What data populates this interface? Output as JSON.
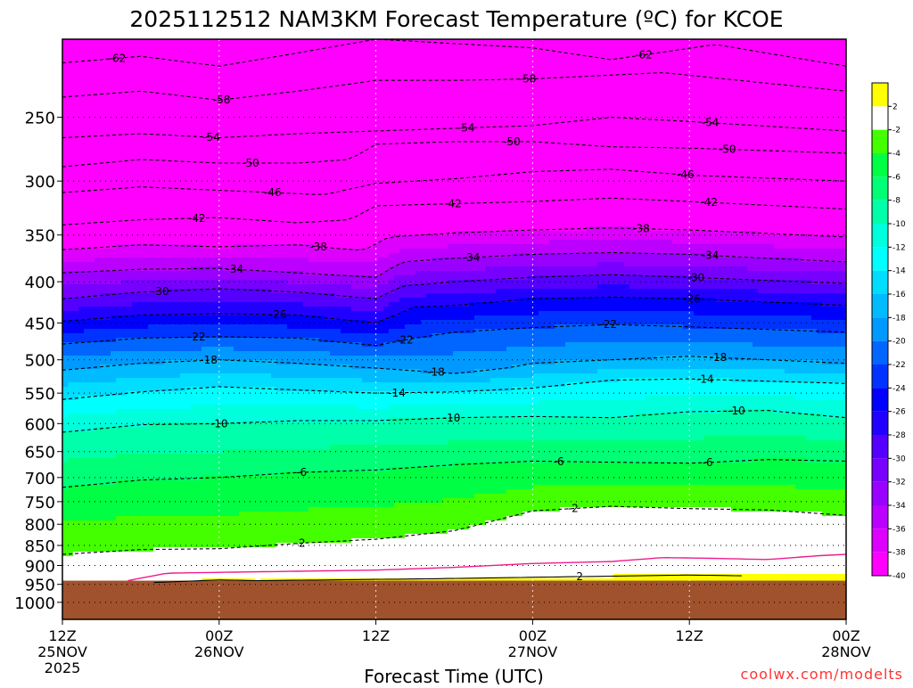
{
  "chart_data": {
    "type": "heatmap",
    "title": "2025112512 NAM3KM Forecast Temperature (ºC) for KCOE",
    "xlabel": "Forecast Time (UTC)",
    "ylabel": "",
    "credit": "coolwx.com/modelts",
    "x_ticks": [
      {
        "hour": 0,
        "line1": "12Z",
        "line2": "25NOV",
        "line3": "2025"
      },
      {
        "hour": 12,
        "line1": "00Z",
        "line2": "26NOV",
        "line3": ""
      },
      {
        "hour": 24,
        "line1": "12Z",
        "line2": "",
        "line3": ""
      },
      {
        "hour": 36,
        "line1": "00Z",
        "line2": "27NOV",
        "line3": ""
      },
      {
        "hour": 48,
        "line1": "12Z",
        "line2": "",
        "line3": ""
      },
      {
        "hour": 60,
        "line1": "00Z",
        "line2": "28NOV",
        "line3": ""
      }
    ],
    "xlim": [
      0,
      60
    ],
    "y_ticks": [
      250,
      300,
      350,
      400,
      450,
      500,
      550,
      600,
      650,
      700,
      750,
      800,
      850,
      900,
      950,
      1000
    ],
    "ylim": [
      1050,
      200
    ],
    "yscale": "log-pressure",
    "surface_pressure": 940,
    "surface_color": "#a0522d",
    "colorbar": {
      "levels": [
        "2",
        "-2",
        "-4",
        "-6",
        "-8",
        "-10",
        "-12",
        "-14",
        "-16",
        "-18",
        "-20",
        "-22",
        "-24",
        "-26",
        "-28",
        "-30",
        "-32",
        "-34",
        "-36",
        "-38",
        "-40"
      ],
      "colors": [
        "#ffff00",
        "#ffffff",
        "#44ff00",
        "#00ff44",
        "#00ff77",
        "#00ffaa",
        "#00ffdd",
        "#00ffff",
        "#00ddff",
        "#00bbff",
        "#0099ff",
        "#0066ff",
        "#0033ff",
        "#0000ff",
        "#2200ff",
        "#5500ff",
        "#7700ff",
        "#9900ff",
        "#bb00ff",
        "#dd00ff",
        "#ff00ff"
      ]
    },
    "contours": [
      {
        "label": "-62",
        "pts": [
          [
            0,
            214
          ],
          [
            6,
            210
          ],
          [
            12,
            216
          ],
          [
            18,
            208
          ],
          [
            24,
            200
          ],
          [
            36,
            205
          ],
          [
            42,
            212
          ],
          [
            50,
            203
          ],
          [
            60,
            216
          ]
        ],
        "labels_at": [
          [
            4.2,
            -62
          ],
          [
            44.5,
            -62
          ]
        ]
      },
      {
        "label": "-58",
        "pts": [
          [
            0,
            236
          ],
          [
            6,
            232
          ],
          [
            12,
            238
          ],
          [
            18,
            232
          ],
          [
            24,
            225
          ],
          [
            30,
            225
          ],
          [
            36,
            224
          ],
          [
            46,
            220
          ],
          [
            60,
            232
          ]
        ],
        "labels_at": [
          [
            12.2,
            -58
          ],
          [
            35.6,
            -58
          ]
        ]
      },
      {
        "label": "-54",
        "pts": [
          [
            0,
            265
          ],
          [
            6,
            262
          ],
          [
            12,
            265
          ],
          [
            18,
            262
          ],
          [
            24,
            260
          ],
          [
            30,
            258
          ],
          [
            36,
            256
          ],
          [
            42,
            250
          ],
          [
            48,
            253
          ],
          [
            60,
            260
          ]
        ],
        "labels_at": [
          [
            11.4,
            -54
          ],
          [
            30.9,
            -54
          ],
          [
            49.6,
            -54
          ]
        ]
      },
      {
        "label": "-50",
        "pts": [
          [
            0,
            288
          ],
          [
            6,
            282
          ],
          [
            12,
            285
          ],
          [
            18,
            285
          ],
          [
            22,
            282
          ],
          [
            24,
            270
          ],
          [
            30,
            268
          ],
          [
            36,
            268
          ],
          [
            42,
            272
          ],
          [
            48,
            273
          ],
          [
            60,
            277
          ]
        ],
        "labels_at": [
          [
            14.4,
            -50
          ],
          [
            34.4,
            -50
          ],
          [
            50.9,
            -50
          ]
        ]
      },
      {
        "label": "-46",
        "pts": [
          [
            0,
            310
          ],
          [
            6,
            305
          ],
          [
            12,
            308
          ],
          [
            16,
            310
          ],
          [
            20,
            312
          ],
          [
            24,
            302
          ],
          [
            30,
            298
          ],
          [
            36,
            292
          ],
          [
            42,
            290
          ],
          [
            48,
            295
          ],
          [
            60,
            300
          ]
        ],
        "labels_at": [
          [
            16.1,
            -46
          ],
          [
            47.7,
            -46
          ]
        ]
      },
      {
        "label": "-42",
        "pts": [
          [
            0,
            340
          ],
          [
            6,
            335
          ],
          [
            12,
            333
          ],
          [
            18,
            338
          ],
          [
            22,
            335
          ],
          [
            24,
            322
          ],
          [
            30,
            320
          ],
          [
            36,
            318
          ],
          [
            42,
            315
          ],
          [
            48,
            318
          ],
          [
            60,
            325
          ]
        ],
        "labels_at": [
          [
            10.3,
            -42
          ],
          [
            29.9,
            -42
          ],
          [
            49.5,
            -42
          ]
        ]
      },
      {
        "label": "-38",
        "pts": [
          [
            0,
            365
          ],
          [
            6,
            360
          ],
          [
            12,
            362
          ],
          [
            18,
            360
          ],
          [
            23,
            366
          ],
          [
            25,
            352
          ],
          [
            30,
            348
          ],
          [
            36,
            345
          ],
          [
            42,
            343
          ],
          [
            48,
            345
          ],
          [
            60,
            352
          ]
        ],
        "labels_at": [
          [
            19.6,
            -38
          ],
          [
            44.3,
            -38
          ]
        ]
      },
      {
        "label": "-34",
        "pts": [
          [
            0,
            390
          ],
          [
            6,
            386
          ],
          [
            12,
            385
          ],
          [
            18,
            390
          ],
          [
            24,
            395
          ],
          [
            26,
            378
          ],
          [
            30,
            374
          ],
          [
            36,
            370
          ],
          [
            42,
            368
          ],
          [
            48,
            370
          ],
          [
            60,
            378
          ]
        ],
        "labels_at": [
          [
            13.2,
            -34
          ],
          [
            31.3,
            -34
          ],
          [
            49.6,
            -34
          ]
        ]
      },
      {
        "label": "-30",
        "pts": [
          [
            0,
            420
          ],
          [
            6,
            412
          ],
          [
            12,
            408
          ],
          [
            18,
            412
          ],
          [
            24,
            420
          ],
          [
            26,
            405
          ],
          [
            30,
            400
          ],
          [
            36,
            395
          ],
          [
            42,
            392
          ],
          [
            48,
            395
          ],
          [
            60,
            402
          ]
        ],
        "labels_at": [
          [
            7.5,
            -30
          ],
          [
            48.5,
            -30
          ]
        ]
      },
      {
        "label": "-26",
        "pts": [
          [
            0,
            448
          ],
          [
            6,
            440
          ],
          [
            12,
            438
          ],
          [
            18,
            440
          ],
          [
            24,
            450
          ],
          [
            27,
            430
          ],
          [
            30,
            428
          ],
          [
            36,
            420
          ],
          [
            42,
            418
          ],
          [
            48,
            420
          ],
          [
            60,
            428
          ]
        ],
        "labels_at": [
          [
            16.5,
            -26
          ],
          [
            48.2,
            -26
          ]
        ]
      },
      {
        "label": "-22",
        "pts": [
          [
            0,
            478
          ],
          [
            6,
            470
          ],
          [
            12,
            468
          ],
          [
            18,
            470
          ],
          [
            24,
            480
          ],
          [
            27,
            470
          ],
          [
            30,
            462
          ],
          [
            36,
            456
          ],
          [
            42,
            452
          ],
          [
            48,
            455
          ],
          [
            60,
            462
          ]
        ],
        "labels_at": [
          [
            10.3,
            -22
          ],
          [
            26.2,
            -22
          ],
          [
            41.8,
            -22
          ]
        ]
      },
      {
        "label": "-18",
        "pts": [
          [
            0,
            515
          ],
          [
            6,
            505
          ],
          [
            12,
            500
          ],
          [
            18,
            505
          ],
          [
            24,
            512
          ],
          [
            30,
            520
          ],
          [
            34,
            512
          ],
          [
            36,
            505
          ],
          [
            42,
            500
          ],
          [
            48,
            495
          ],
          [
            60,
            505
          ]
        ],
        "labels_at": [
          [
            11.2,
            -18
          ],
          [
            28.6,
            -18
          ],
          [
            50.2,
            -18
          ]
        ]
      },
      {
        "label": "-14",
        "pts": [
          [
            0,
            560
          ],
          [
            6,
            548
          ],
          [
            12,
            540
          ],
          [
            18,
            545
          ],
          [
            24,
            550
          ],
          [
            30,
            548
          ],
          [
            36,
            542
          ],
          [
            42,
            530
          ],
          [
            48,
            528
          ],
          [
            60,
            535
          ]
        ],
        "labels_at": [
          [
            25.6,
            -14
          ],
          [
            49.2,
            -14
          ]
        ]
      },
      {
        "label": "-10",
        "pts": [
          [
            0,
            615
          ],
          [
            6,
            602
          ],
          [
            12,
            600
          ],
          [
            18,
            595
          ],
          [
            24,
            595
          ],
          [
            30,
            590
          ],
          [
            36,
            588
          ],
          [
            42,
            590
          ],
          [
            48,
            580
          ],
          [
            54,
            578
          ],
          [
            60,
            590
          ]
        ],
        "labels_at": [
          [
            12.0,
            -10
          ],
          [
            29.8,
            -10
          ],
          [
            51.6,
            -10
          ]
        ]
      },
      {
        "label": "-6",
        "pts": [
          [
            0,
            720
          ],
          [
            6,
            705
          ],
          [
            12,
            700
          ],
          [
            18,
            690
          ],
          [
            24,
            685
          ],
          [
            30,
            675
          ],
          [
            36,
            668
          ],
          [
            42,
            670
          ],
          [
            48,
            672
          ],
          [
            54,
            665
          ],
          [
            60,
            668
          ]
        ],
        "labels_at": [
          [
            18.3,
            -6
          ],
          [
            38.0,
            -6
          ],
          [
            49.4,
            -6
          ]
        ]
      },
      {
        "label": "-2",
        "pts": [
          [
            0,
            872
          ],
          [
            6,
            860
          ],
          [
            12,
            858
          ],
          [
            18,
            845
          ],
          [
            24,
            835
          ],
          [
            30,
            815
          ],
          [
            36,
            770
          ],
          [
            42,
            760
          ],
          [
            48,
            765
          ],
          [
            54,
            768
          ],
          [
            60,
            780
          ]
        ],
        "labels_at": [
          [
            18.2,
            -2
          ],
          [
            39.1,
            -2
          ]
        ]
      },
      {
        "label": "2",
        "pts": [
          [
            7,
            945
          ],
          [
            12,
            938
          ],
          [
            15,
            940
          ],
          [
            28,
            935
          ],
          [
            34,
            932
          ],
          [
            38,
            930
          ],
          [
            42,
            928
          ],
          [
            48,
            925
          ],
          [
            52,
            927
          ]
        ],
        "labels_at": [
          [
            39.6,
            2
          ]
        ]
      }
    ],
    "pink_line": {
      "color": "#ee1c8c",
      "pts": [
        [
          5,
          940
        ],
        [
          8,
          920
        ],
        [
          12,
          918
        ],
        [
          18,
          915
        ],
        [
          24,
          912
        ],
        [
          30,
          905
        ],
        [
          36,
          895
        ],
        [
          42,
          890
        ],
        [
          46,
          880
        ],
        [
          50,
          882
        ],
        [
          54,
          885
        ],
        [
          58,
          875
        ],
        [
          60,
          872
        ]
      ]
    }
  }
}
